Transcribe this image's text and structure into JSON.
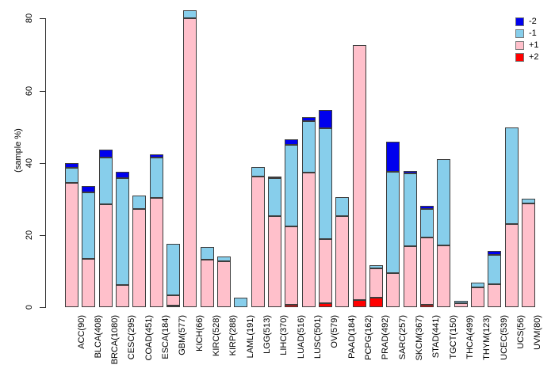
{
  "chart_data": {
    "type": "stacked-bar",
    "title": "",
    "ylabel": "(sample %)",
    "xlabel": "",
    "ylim": [
      0,
      83
    ],
    "yticks": [
      0,
      20,
      40,
      60,
      80
    ],
    "grid": false,
    "legend_position": "top-right",
    "legend_entries": [
      {
        "label": "-2",
        "color": "#0000EE"
      },
      {
        "label": "-1",
        "color": "#87CEEB"
      },
      {
        "label": "+1",
        "color": "#FFC0CB"
      },
      {
        "label": "+2",
        "color": "#FF0000"
      }
    ],
    "categories": [
      "ACC(90)",
      "BLCA(408)",
      "BRCA(1080)",
      "CESC(295)",
      "COAD(451)",
      "ESCA(184)",
      "GBM(577)",
      "KICH(66)",
      "KIRC(528)",
      "KIRP(288)",
      "LAML(191)",
      "LGG(513)",
      "LIHC(370)",
      "LUAD(516)",
      "LUSC(501)",
      "OV(579)",
      "PAAD(184)",
      "PCPG(162)",
      "PRAD(492)",
      "SARC(257)",
      "SKCM(367)",
      "STAD(441)",
      "TGCT(150)",
      "THCA(499)",
      "THYM(123)",
      "UCEC(539)",
      "UCS(56)",
      "UVM(80)"
    ],
    "stack_order_bottom_to_top": [
      "+2",
      "+1",
      "-1",
      "-2"
    ],
    "series": [
      {
        "name": "+2",
        "color": "#FF0000",
        "values": [
          0,
          0,
          0,
          0,
          0,
          0,
          0.5,
          0,
          0,
          0,
          0,
          0,
          0,
          0.7,
          0,
          1.0,
          0,
          1.9,
          2.6,
          0,
          0,
          0.6,
          0,
          0,
          0,
          0,
          0,
          0
        ]
      },
      {
        "name": "+1",
        "color": "#FFC0CB",
        "values": [
          34.5,
          13.4,
          28.6,
          6.1,
          27.3,
          30.2,
          2.8,
          80.1,
          13.2,
          12.8,
          0,
          36.1,
          25.2,
          21.6,
          37.4,
          17.9,
          25.2,
          70.8,
          8.1,
          9.5,
          16.9,
          18.8,
          17.2,
          1.0,
          5.5,
          6.3,
          23.1,
          28.8
        ]
      },
      {
        "name": "-1",
        "color": "#87CEEB",
        "values": [
          4.1,
          18.4,
          12.8,
          29.6,
          3.7,
          11.2,
          14.3,
          2.2,
          3.5,
          1.3,
          2.6,
          2.8,
          10.5,
          22.6,
          14.2,
          30.7,
          5.4,
          0,
          1.0,
          28.0,
          20.1,
          7.9,
          23.9,
          0.7,
          1.2,
          8.2,
          26.7,
          1.2
        ]
      },
      {
        "name": "-2",
        "color": "#0000EE",
        "values": [
          1.4,
          1.7,
          2.2,
          1.8,
          0,
          0.9,
          0,
          0,
          0,
          0,
          0,
          0,
          0.6,
          1.6,
          1.0,
          5.1,
          0,
          0,
          0,
          8.3,
          0.7,
          0.7,
          0,
          0,
          0,
          1.1,
          0,
          0
        ]
      }
    ]
  }
}
